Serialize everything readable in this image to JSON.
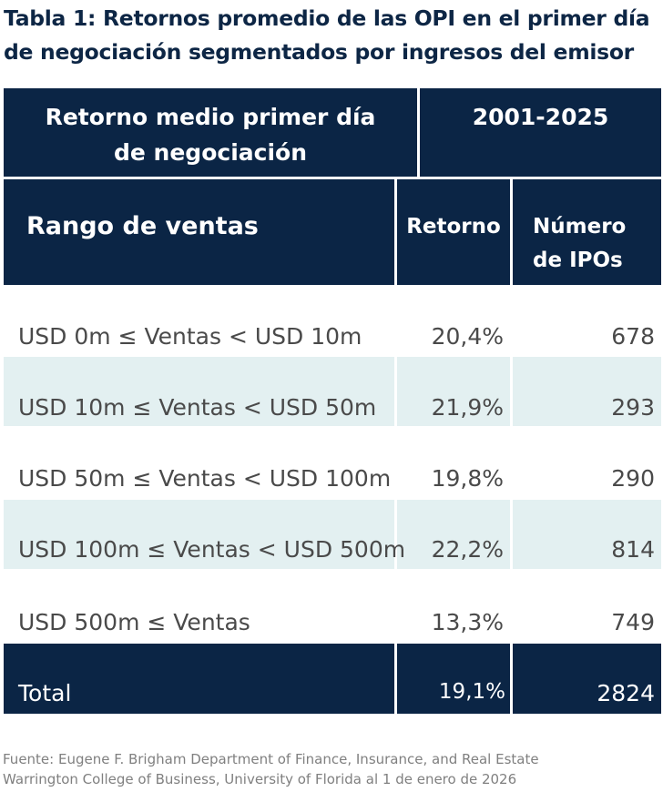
{
  "title": {
    "line1": "Tabla 1: Retornos promedio de las OPI en el primer día",
    "line2": "de negociación segmentados por ingresos del emisor"
  },
  "header_top": {
    "left_line1": "Retorno medio primer día",
    "left_line2": "de negociación",
    "right": "2001-2025"
  },
  "header_columns": {
    "range": "Rango de ventas",
    "return": "Retorno",
    "count_line1": "Número",
    "count_line2": "de IPOs"
  },
  "rows": [
    {
      "range": "USD 0m ≤ Ventas < USD 10m",
      "return": "20,4%",
      "count": "678"
    },
    {
      "range": "USD 10m ≤ Ventas < USD 50m",
      "return": "21,9%",
      "count": "293"
    },
    {
      "range": "USD 50m ≤ Ventas < USD 100m",
      "return": "19,8%",
      "count": "290"
    },
    {
      "range": "USD 100m ≤ Ventas < USD 500m",
      "return": "22,2%",
      "count": "814"
    },
    {
      "range": "USD 500m ≤ Ventas",
      "return": "13,3%",
      "count": "749"
    }
  ],
  "total": {
    "label": "Total",
    "return": "19,1%",
    "count": "2824"
  },
  "source": {
    "line1": "Fuente: Eugene F. Brigham Department of Finance, Insurance, and Real Estate",
    "line2": "Warrington College of Business, University of Florida al 1 de enero de 2026"
  },
  "colors": {
    "navy": "#0b2545",
    "row_stripe": "#e3f0f1",
    "title": "#0d2645",
    "body_text": "#4a4a4a",
    "source_text": "#808080"
  }
}
